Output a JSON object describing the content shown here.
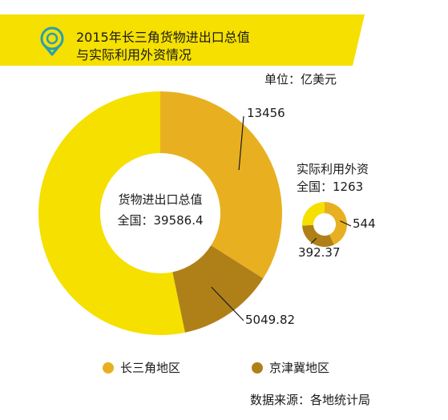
{
  "title_lines": [
    "2015年长三角货物进出口总值",
    "与实际利用外资情况"
  ],
  "unit": "单位：亿美元",
  "source": "数据来源：各地统计局",
  "colors": {
    "band": "#f5e000",
    "national": "#f5e000",
    "yrd": "#e8b020",
    "jjj": "#b08018",
    "icon": "#2a9fb0"
  },
  "icon": "location-pin-icon",
  "legend": [
    {
      "label": "长三角地区",
      "color": "#e8b020"
    },
    {
      "label": "京津冀地区",
      "color": "#b08018"
    }
  ],
  "chart_data": [
    {
      "type": "pie",
      "title": "货物进出口总值",
      "total_label": "全国：39586.4",
      "total": 39586.4,
      "slices": [
        {
          "name": "长三角地区",
          "value": 13456
        },
        {
          "name": "京津冀地区",
          "value": 5049.82
        }
      ],
      "value_labels": [
        "13456",
        "5049.82"
      ]
    },
    {
      "type": "pie",
      "title": "实际利用外资",
      "total_label": "全国：1263",
      "total": 1263,
      "slices": [
        {
          "name": "长三角地区",
          "value": 544
        },
        {
          "name": "京津冀地区",
          "value": 392.37
        }
      ],
      "value_labels": [
        "544",
        "392.37"
      ]
    }
  ]
}
